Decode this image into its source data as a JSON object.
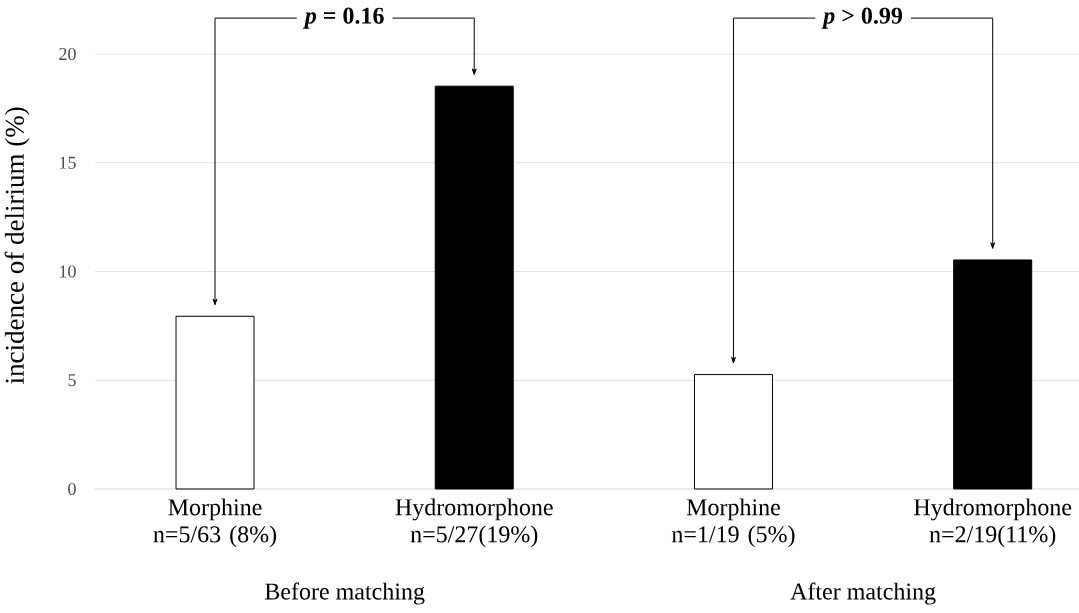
{
  "chart_data": {
    "type": "bar",
    "ylabel": "incidence of delirium (%)",
    "categories": [
      "Morphine n=5/63 (8%)",
      "Hydromorphone n=5/27(19%)",
      "Morphine n=1/19 (5%)",
      "Hydromorphone n=2/19(11%)"
    ],
    "values": [
      7.94,
      18.52,
      5.26,
      10.53
    ],
    "colors": [
      "#ffffff",
      "#000000",
      "#ffffff",
      "#000000"
    ],
    "ylim": [
      0,
      20
    ],
    "yticks": [
      0,
      5,
      10,
      15,
      20
    ],
    "grid": "y",
    "annotations": [
      "*p*  = 0.16",
      "*p*  > 0.99",
      "Before matching",
      "After matching"
    ]
  }
}
